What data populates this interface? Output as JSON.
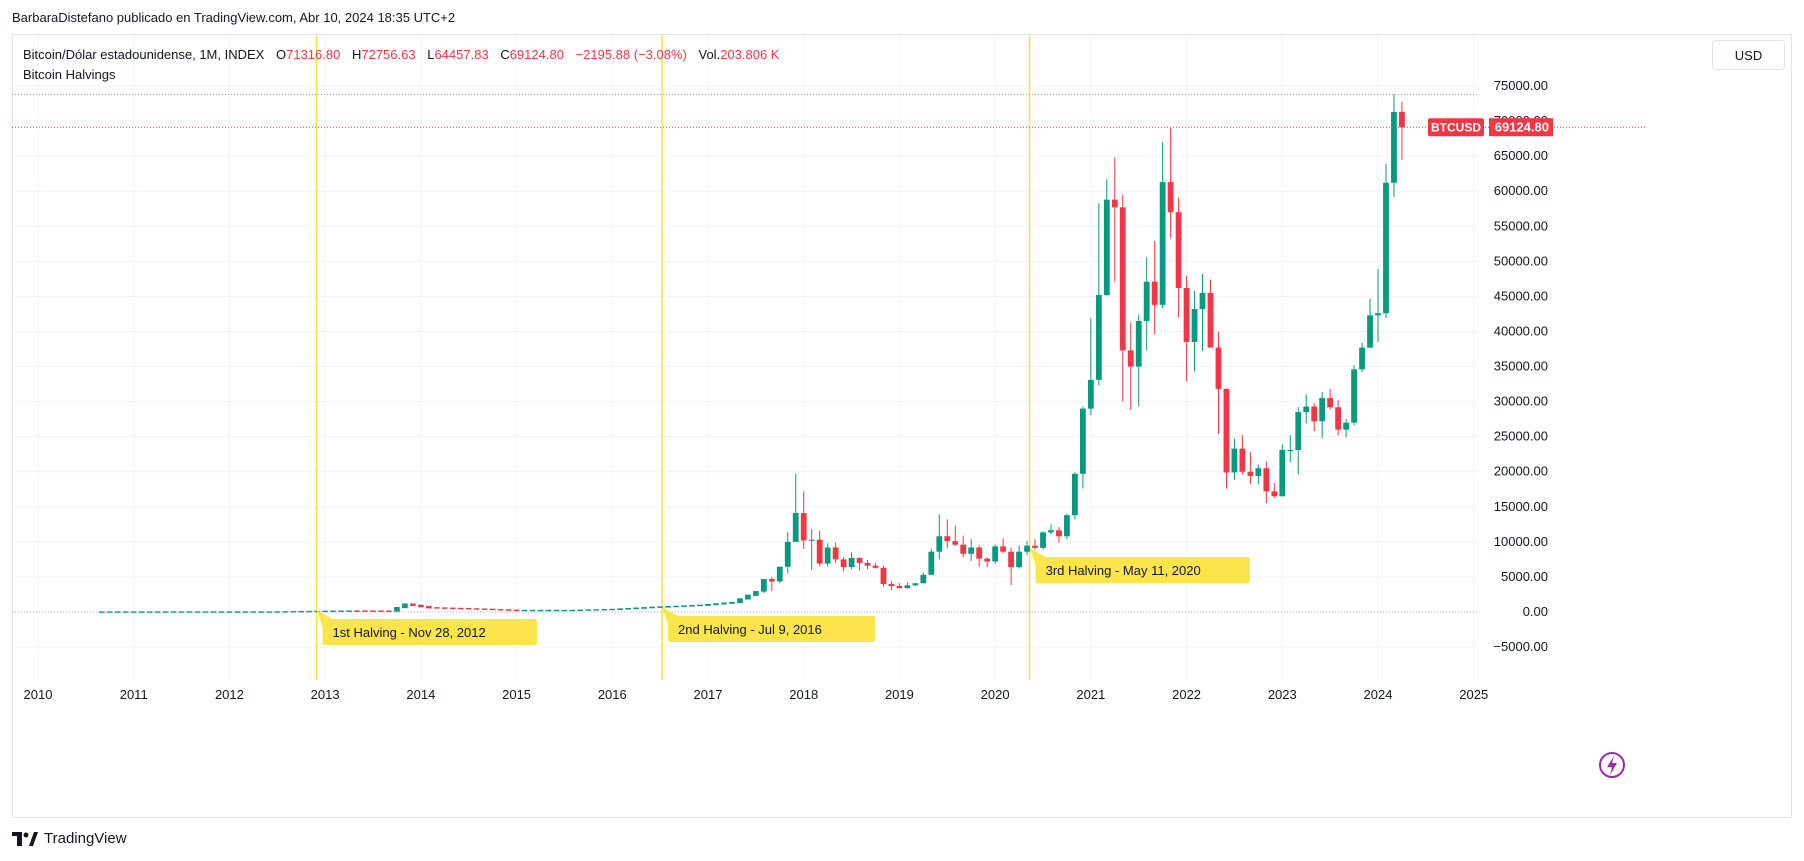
{
  "attribution": "BarbaraDistefano publicado en TradingView.com, Abr 10, 2024 18:35 UTC+2",
  "legend": {
    "symbol": "Bitcoin/Dólar estadounidense, 1M, INDEX",
    "open_label": "O",
    "open": "71316.80",
    "high_label": "H",
    "high": "72756.63",
    "low_label": "L",
    "low": "64457.83",
    "close_label": "C",
    "close": "69124.80",
    "change": "−2195.88 (−3.08%)",
    "volume_label": "Vol.",
    "volume": "203.806 K",
    "indicator": "Bitcoin Halvings"
  },
  "currency_button": "USD",
  "footer_brand": "TradingView",
  "colors": {
    "up": "#089981",
    "down": "#f23645",
    "halving_line": "#f5e338",
    "halving_label_bg": "#fbe54a",
    "grid": "#f0f3fa"
  },
  "chart_data": {
    "type": "candlestick",
    "xlim": [
      2009.7,
      2025.0
    ],
    "ylim": [
      -10000,
      78000
    ],
    "yticks": [
      -5000,
      0,
      5000,
      10000,
      15000,
      20000,
      25000,
      30000,
      35000,
      40000,
      45000,
      50000,
      55000,
      60000,
      65000,
      70000,
      75000
    ],
    "ytick_labels": [
      "−5000.00",
      "0.00",
      "5000.00",
      "10000.00",
      "15000.00",
      "20000.00",
      "25000.00",
      "30000.00",
      "35000.00",
      "40000.00",
      "45000.00",
      "50000.00",
      "55000.00",
      "60000.00",
      "65000.00",
      "70000.00",
      "75000.00"
    ],
    "xticks": [
      {
        "x": 2010,
        "label": "2010"
      },
      {
        "x": 2011,
        "label": "2011"
      },
      {
        "x": 2012,
        "label": "2012"
      },
      {
        "x": 2013,
        "label": "2013"
      },
      {
        "x": 2014,
        "label": "2014"
      },
      {
        "x": 2015,
        "label": "2015"
      },
      {
        "x": 2016,
        "label": "2016"
      },
      {
        "x": 2017,
        "label": "2017"
      },
      {
        "x": 2018,
        "label": "2018"
      },
      {
        "x": 2019,
        "label": "2019"
      },
      {
        "x": 2020,
        "label": "2020"
      },
      {
        "x": 2021,
        "label": "2021"
      },
      {
        "x": 2022,
        "label": "2022"
      },
      {
        "x": 2023,
        "label": "2023"
      },
      {
        "x": 2024,
        "label": "2024"
      },
      {
        "x": 2025,
        "label": "2025"
      }
    ],
    "grid": true,
    "last_price": {
      "label": "BTCUSD",
      "value": "69124.80",
      "y": 69124.8
    },
    "ath_line": 73800,
    "halvings": [
      {
        "x": 2012.91,
        "label": "1st Halving - Nov 28, 2012"
      },
      {
        "x": 2016.52,
        "label": "2nd Halving - Jul 9, 2016"
      },
      {
        "x": 2020.36,
        "label": "3rd Halving - May 11, 2020"
      }
    ],
    "candles": [
      {
        "t": "2017-08",
        "o": 2900,
        "h": 4700,
        "l": 2700,
        "c": 4700
      },
      {
        "t": "2017-09",
        "o": 4700,
        "h": 4980,
        "l": 2970,
        "c": 4350
      },
      {
        "t": "2017-10",
        "o": 4350,
        "h": 6450,
        "l": 4100,
        "c": 6450
      },
      {
        "t": "2017-11",
        "o": 6450,
        "h": 11400,
        "l": 5500,
        "c": 10000
      },
      {
        "t": "2017-12",
        "o": 10000,
        "h": 19700,
        "l": 10000,
        "c": 14100
      },
      {
        "t": "2018-01",
        "o": 14100,
        "h": 17200,
        "l": 9000,
        "c": 10200
      },
      {
        "t": "2018-02",
        "o": 10200,
        "h": 11800,
        "l": 6000,
        "c": 10300
      },
      {
        "t": "2018-03",
        "o": 10300,
        "h": 11600,
        "l": 6500,
        "c": 6900
      },
      {
        "t": "2018-04",
        "o": 6900,
        "h": 9800,
        "l": 6500,
        "c": 9200
      },
      {
        "t": "2018-05",
        "o": 9200,
        "h": 9900,
        "l": 7000,
        "c": 7500
      },
      {
        "t": "2018-06",
        "o": 7500,
        "h": 7800,
        "l": 5800,
        "c": 6400
      },
      {
        "t": "2018-07",
        "o": 6400,
        "h": 8500,
        "l": 6100,
        "c": 7700
      },
      {
        "t": "2018-08",
        "o": 7700,
        "h": 7800,
        "l": 5900,
        "c": 7000
      },
      {
        "t": "2018-09",
        "o": 7000,
        "h": 7400,
        "l": 6100,
        "c": 6600
      },
      {
        "t": "2018-10",
        "o": 6600,
        "h": 7000,
        "l": 6200,
        "c": 6300
      },
      {
        "t": "2018-11",
        "o": 6300,
        "h": 6600,
        "l": 3600,
        "c": 4000
      },
      {
        "t": "2018-12",
        "o": 4000,
        "h": 4400,
        "l": 3100,
        "c": 3700
      },
      {
        "t": "2019-01",
        "o": 3700,
        "h": 4100,
        "l": 3350,
        "c": 3400
      },
      {
        "t": "2019-02",
        "o": 3400,
        "h": 4200,
        "l": 3350,
        "c": 3800
      },
      {
        "t": "2019-03",
        "o": 3800,
        "h": 4100,
        "l": 3700,
        "c": 4100
      },
      {
        "t": "2019-04",
        "o": 4100,
        "h": 5600,
        "l": 4100,
        "c": 5300
      },
      {
        "t": "2019-05",
        "o": 5300,
        "h": 9000,
        "l": 5300,
        "c": 8600
      },
      {
        "t": "2019-06",
        "o": 8600,
        "h": 13900,
        "l": 7500,
        "c": 10800
      },
      {
        "t": "2019-07",
        "o": 10800,
        "h": 13200,
        "l": 9100,
        "c": 10100
      },
      {
        "t": "2019-08",
        "o": 10100,
        "h": 12300,
        "l": 9400,
        "c": 9600
      },
      {
        "t": "2019-09",
        "o": 9600,
        "h": 10900,
        "l": 7800,
        "c": 8300
      },
      {
        "t": "2019-10",
        "o": 8300,
        "h": 10400,
        "l": 7300,
        "c": 9200
      },
      {
        "t": "2019-11",
        "o": 9200,
        "h": 9500,
        "l": 6500,
        "c": 7600
      },
      {
        "t": "2019-12",
        "o": 7600,
        "h": 7800,
        "l": 6400,
        "c": 7200
      },
      {
        "t": "2020-01",
        "o": 7200,
        "h": 9600,
        "l": 6900,
        "c": 9350
      },
      {
        "t": "2020-02",
        "o": 9350,
        "h": 10500,
        "l": 8400,
        "c": 8600
      },
      {
        "t": "2020-03",
        "o": 8600,
        "h": 9200,
        "l": 3850,
        "c": 6400
      },
      {
        "t": "2020-04",
        "o": 6400,
        "h": 9500,
        "l": 6200,
        "c": 8600
      },
      {
        "t": "2020-05",
        "o": 8600,
        "h": 10100,
        "l": 8100,
        "c": 9450
      },
      {
        "t": "2020-06",
        "o": 9450,
        "h": 10400,
        "l": 8900,
        "c": 9150
      },
      {
        "t": "2020-07",
        "o": 9150,
        "h": 11500,
        "l": 8900,
        "c": 11350
      },
      {
        "t": "2020-08",
        "o": 11350,
        "h": 12500,
        "l": 11100,
        "c": 11650
      },
      {
        "t": "2020-09",
        "o": 11650,
        "h": 12100,
        "l": 9900,
        "c": 10800
      },
      {
        "t": "2020-10",
        "o": 10800,
        "h": 14000,
        "l": 10400,
        "c": 13800
      },
      {
        "t": "2020-11",
        "o": 13800,
        "h": 19900,
        "l": 13200,
        "c": 19700
      },
      {
        "t": "2020-12",
        "o": 19700,
        "h": 29300,
        "l": 17600,
        "c": 29000
      },
      {
        "t": "2021-01",
        "o": 29000,
        "h": 41900,
        "l": 28100,
        "c": 33100
      },
      {
        "t": "2021-02",
        "o": 33100,
        "h": 58300,
        "l": 32300,
        "c": 45200
      },
      {
        "t": "2021-03",
        "o": 45200,
        "h": 61700,
        "l": 45100,
        "c": 58800
      },
      {
        "t": "2021-04",
        "o": 58800,
        "h": 64800,
        "l": 47100,
        "c": 57700
      },
      {
        "t": "2021-05",
        "o": 57700,
        "h": 59500,
        "l": 30000,
        "c": 37300
      },
      {
        "t": "2021-06",
        "o": 37300,
        "h": 41300,
        "l": 28800,
        "c": 35000
      },
      {
        "t": "2021-07",
        "o": 35000,
        "h": 42400,
        "l": 29300,
        "c": 41500
      },
      {
        "t": "2021-08",
        "o": 41500,
        "h": 50500,
        "l": 37300,
        "c": 47100
      },
      {
        "t": "2021-09",
        "o": 47100,
        "h": 52900,
        "l": 39600,
        "c": 43800
      },
      {
        "t": "2021-10",
        "o": 43800,
        "h": 67000,
        "l": 43300,
        "c": 61300
      },
      {
        "t": "2021-11",
        "o": 61300,
        "h": 69000,
        "l": 53300,
        "c": 57000
      },
      {
        "t": "2021-12",
        "o": 57000,
        "h": 59100,
        "l": 42000,
        "c": 46200
      },
      {
        "t": "2022-01",
        "o": 46200,
        "h": 47900,
        "l": 32900,
        "c": 38500
      },
      {
        "t": "2022-02",
        "o": 38500,
        "h": 45800,
        "l": 34300,
        "c": 43200
      },
      {
        "t": "2022-03",
        "o": 43200,
        "h": 48200,
        "l": 37200,
        "c": 45500
      },
      {
        "t": "2022-04",
        "o": 45500,
        "h": 47400,
        "l": 37700,
        "c": 37700
      },
      {
        "t": "2022-05",
        "o": 37700,
        "h": 40000,
        "l": 25400,
        "c": 31800
      },
      {
        "t": "2022-06",
        "o": 31800,
        "h": 31900,
        "l": 17600,
        "c": 19900
      },
      {
        "t": "2022-07",
        "o": 19900,
        "h": 24700,
        "l": 18800,
        "c": 23300
      },
      {
        "t": "2022-08",
        "o": 23300,
        "h": 25200,
        "l": 19600,
        "c": 20000
      },
      {
        "t": "2022-09",
        "o": 20000,
        "h": 22800,
        "l": 18200,
        "c": 19400
      },
      {
        "t": "2022-10",
        "o": 19400,
        "h": 21000,
        "l": 18200,
        "c": 20500
      },
      {
        "t": "2022-11",
        "o": 20500,
        "h": 21500,
        "l": 15500,
        "c": 17200
      },
      {
        "t": "2022-12",
        "o": 17200,
        "h": 18400,
        "l": 16300,
        "c": 16500
      },
      {
        "t": "2023-01",
        "o": 16500,
        "h": 23900,
        "l": 16500,
        "c": 23100
      },
      {
        "t": "2023-02",
        "o": 23100,
        "h": 25200,
        "l": 21400,
        "c": 23100
      },
      {
        "t": "2023-03",
        "o": 23100,
        "h": 29200,
        "l": 19600,
        "c": 28500
      },
      {
        "t": "2023-04",
        "o": 28500,
        "h": 31000,
        "l": 26900,
        "c": 29300
      },
      {
        "t": "2023-05",
        "o": 29300,
        "h": 29800,
        "l": 25800,
        "c": 27200
      },
      {
        "t": "2023-06",
        "o": 27200,
        "h": 31400,
        "l": 24800,
        "c": 30500
      },
      {
        "t": "2023-07",
        "o": 30500,
        "h": 31800,
        "l": 28900,
        "c": 29200
      },
      {
        "t": "2023-08",
        "o": 29200,
        "h": 30200,
        "l": 25200,
        "c": 26000
      },
      {
        "t": "2023-09",
        "o": 26000,
        "h": 27500,
        "l": 24900,
        "c": 27000
      },
      {
        "t": "2023-10",
        "o": 27000,
        "h": 35200,
        "l": 26600,
        "c": 34600
      },
      {
        "t": "2023-11",
        "o": 34600,
        "h": 38400,
        "l": 34200,
        "c": 37700
      },
      {
        "t": "2023-12",
        "o": 37700,
        "h": 44700,
        "l": 37600,
        "c": 42300
      },
      {
        "t": "2024-01",
        "o": 42300,
        "h": 48900,
        "l": 38500,
        "c": 42600
      },
      {
        "t": "2024-02",
        "o": 42600,
        "h": 63900,
        "l": 41900,
        "c": 61200
      },
      {
        "t": "2024-03",
        "o": 61200,
        "h": 73800,
        "l": 59200,
        "c": 71300
      },
      {
        "t": "2024-04",
        "o": 71316.8,
        "h": 72756.63,
        "l": 64457.83,
        "c": 69124.8
      }
    ],
    "early_trend": [
      {
        "t": "2010-08",
        "v": 0.07
      },
      {
        "t": "2012-06",
        "v": 6
      },
      {
        "t": "2013-04",
        "v": 140
      },
      {
        "t": "2013-09",
        "v": 130
      },
      {
        "t": "2013-11",
        "v": 1130
      },
      {
        "t": "2014-02",
        "v": 600
      },
      {
        "t": "2014-09",
        "v": 390
      },
      {
        "t": "2015-01",
        "v": 220
      },
      {
        "t": "2015-08",
        "v": 230
      },
      {
        "t": "2016-01",
        "v": 370
      },
      {
        "t": "2016-06",
        "v": 670
      },
      {
        "t": "2016-12",
        "v": 960
      },
      {
        "t": "2017-04",
        "v": 1350
      },
      {
        "t": "2017-07",
        "v": 2900
      }
    ]
  }
}
